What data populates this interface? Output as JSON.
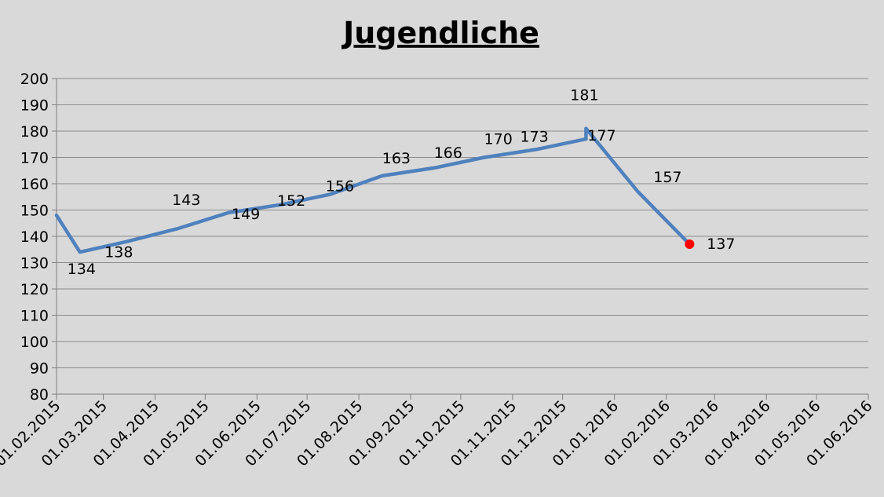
{
  "chart_data": {
    "type": "line",
    "title": "Jugendliche",
    "xlabel": "",
    "ylabel": "",
    "ylim": [
      80,
      200
    ],
    "y_ticks": [
      80,
      90,
      100,
      110,
      120,
      130,
      140,
      150,
      160,
      170,
      180,
      190,
      200
    ],
    "x_ticks": [
      "01.02.2015",
      "01.03.2015",
      "01.04.2015",
      "01.05.2015",
      "01.06.2015",
      "01.07.2015",
      "01.08.2015",
      "01.09.2015",
      "01.10.2015",
      "01.11.2015",
      "01.12.2015",
      "01.01.2016",
      "01.02.2016",
      "01.03.2016",
      "01.04.2016",
      "01.05.2016",
      "01.06.2016"
    ],
    "grid": "horizontal",
    "legend": "none",
    "line_color": "#4f81bd",
    "marker_color": "#ff0000",
    "series": [
      {
        "points": [
          {
            "x": "01.02.2015",
            "y": 148,
            "label": ""
          },
          {
            "x": "15.02.2015",
            "y": 134,
            "label": "134"
          },
          {
            "x": "15.03.2015",
            "y": 138,
            "label": "138"
          },
          {
            "x": "15.04.2015",
            "y": 143,
            "label": "143"
          },
          {
            "x": "15.05.2015",
            "y": 149,
            "label": "149"
          },
          {
            "x": "15.06.2015",
            "y": 152,
            "label": "152"
          },
          {
            "x": "15.07.2015",
            "y": 156,
            "label": "156"
          },
          {
            "x": "15.08.2015",
            "y": 163,
            "label": "163"
          },
          {
            "x": "15.09.2015",
            "y": 166,
            "label": "166"
          },
          {
            "x": "15.10.2015",
            "y": 170,
            "label": "170"
          },
          {
            "x": "15.11.2015",
            "y": 173,
            "label": "173"
          },
          {
            "x": "15.12.2015",
            "y": 177,
            "label": "177"
          },
          {
            "x": "15.12.2015",
            "y": 181,
            "label": "181"
          },
          {
            "x": "15.01.2016",
            "y": 157,
            "label": "157"
          },
          {
            "x": "15.02.2016",
            "y": 137,
            "label": "137"
          }
        ]
      }
    ]
  }
}
